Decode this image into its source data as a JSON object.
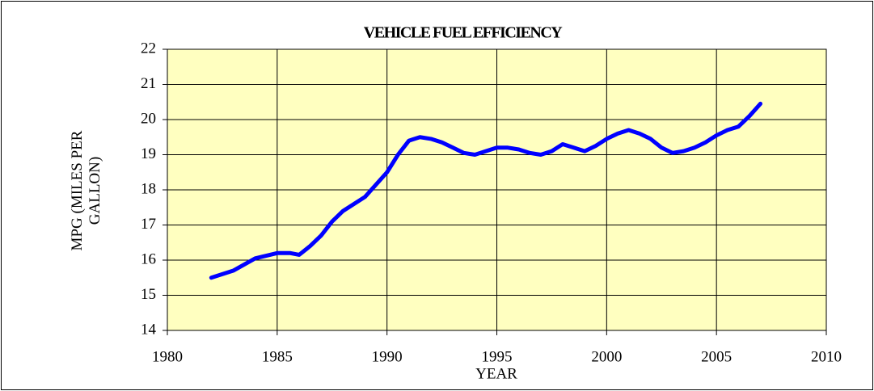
{
  "chart_data": {
    "type": "line",
    "title": "VEHICLE FUEL EFFICIENCY",
    "xlabel": "YEAR",
    "ylabel": "MPG (MILES PER GALLON)",
    "xlim": [
      1980,
      2010
    ],
    "xticks": [
      1980,
      1985,
      1990,
      1995,
      2000,
      2005,
      2010
    ],
    "ylim": [
      14,
      22
    ],
    "yticks": [
      14,
      15,
      16,
      17,
      18,
      19,
      20,
      21,
      22
    ],
    "grid": true,
    "background": "#ffffc0",
    "x": [
      1982,
      1983,
      1984,
      1985,
      1985.6,
      1986,
      1986.5,
      1987,
      1987.5,
      1988,
      1989,
      1990,
      1990.5,
      1991,
      1991.5,
      1992,
      1992.5,
      1993,
      1993.5,
      1994,
      1995,
      1995.5,
      1996,
      1996.5,
      1997,
      1997.5,
      1998,
      1998.5,
      1999,
      1999.5,
      2000,
      2000.5,
      2001,
      2001.5,
      2002,
      2002.5,
      2003,
      2003.5,
      2004,
      2004.5,
      2005,
      2005.5,
      2006,
      2006.5,
      2007
    ],
    "series": [
      {
        "name": "MPG",
        "color": "#0000ff",
        "values": [
          15.5,
          15.7,
          16.05,
          16.2,
          16.2,
          16.15,
          16.4,
          16.7,
          17.1,
          17.4,
          17.8,
          18.5,
          19.0,
          19.4,
          19.5,
          19.45,
          19.35,
          19.2,
          19.05,
          19.0,
          19.2,
          19.2,
          19.15,
          19.05,
          19.0,
          19.1,
          19.3,
          19.2,
          19.1,
          19.25,
          19.45,
          19.6,
          19.7,
          19.6,
          19.45,
          19.2,
          19.05,
          19.1,
          19.2,
          19.35,
          19.55,
          19.7,
          19.8,
          20.1,
          20.45
        ]
      }
    ]
  }
}
